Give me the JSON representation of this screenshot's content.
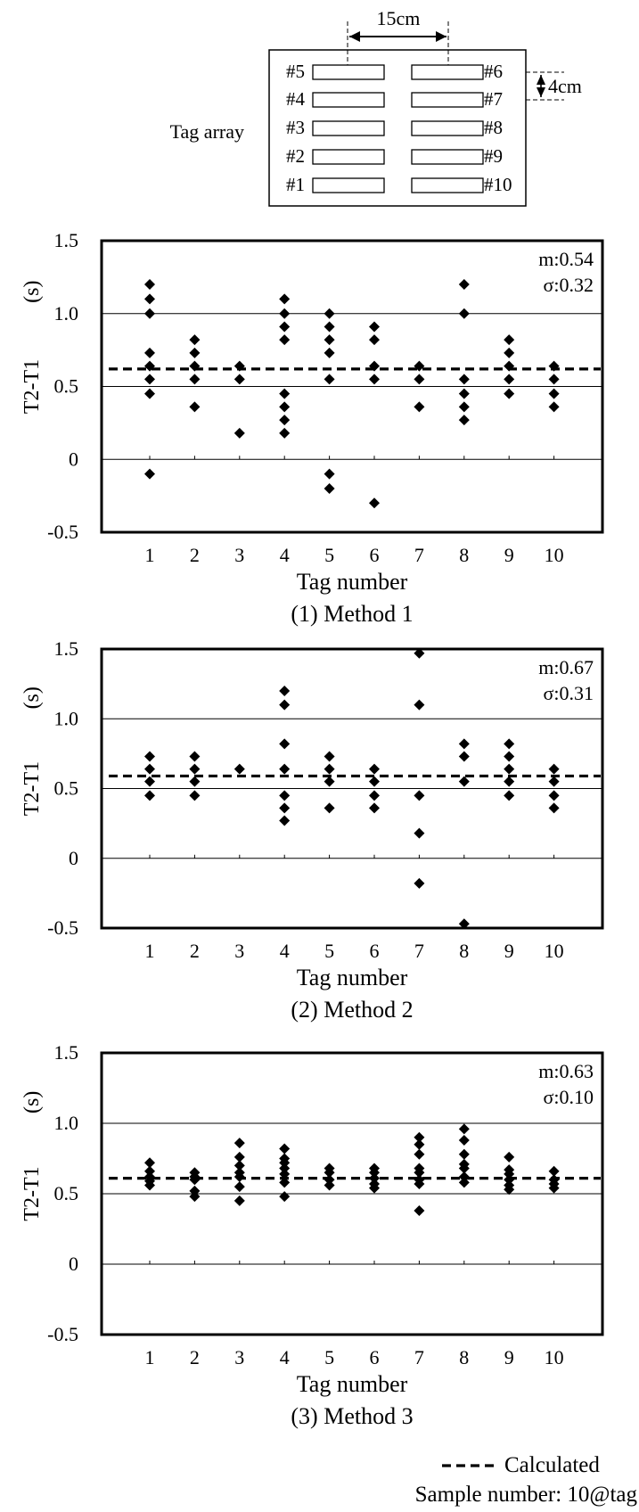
{
  "tag_array": {
    "label": "Tag array",
    "spacing_label": "15cm",
    "pitch_label": "4cm",
    "left_tags": [
      "#5",
      "#4",
      "#3",
      "#2",
      "#1"
    ],
    "right_tags": [
      "#6",
      "#7",
      "#8",
      "#9",
      "#10"
    ]
  },
  "legend": {
    "calculated_label": "Calculated",
    "sample_label": "Sample number: 10@tag"
  },
  "chart_data": [
    {
      "type": "scatter",
      "caption": "(1) Method 1",
      "xlabel": "Tag number",
      "ylabel": "T2-T1",
      "ylabel_unit": "(s)",
      "ylim": [
        -0.5,
        1.5
      ],
      "yticks": [
        "1.5",
        "1.0",
        "0.5",
        "0",
        "-0.5"
      ],
      "categories": [
        "1",
        "2",
        "3",
        "4",
        "5",
        "6",
        "7",
        "8",
        "9",
        "10"
      ],
      "calculated": 0.62,
      "stats": {
        "mean": "m:0.54",
        "sigma": "σ:0.32"
      },
      "points": [
        [
          1,
          1.2
        ],
        [
          1,
          1.1
        ],
        [
          1,
          1.0
        ],
        [
          1,
          0.73
        ],
        [
          1,
          0.64
        ],
        [
          1,
          0.55
        ],
        [
          1,
          0.45
        ],
        [
          1,
          -0.1
        ],
        [
          2,
          0.82
        ],
        [
          2,
          0.73
        ],
        [
          2,
          0.64
        ],
        [
          2,
          0.55
        ],
        [
          2,
          0.36
        ],
        [
          3,
          0.64
        ],
        [
          3,
          0.55
        ],
        [
          3,
          0.18
        ],
        [
          4,
          1.1
        ],
        [
          4,
          1.0
        ],
        [
          4,
          0.91
        ],
        [
          4,
          0.82
        ],
        [
          4,
          0.45
        ],
        [
          4,
          0.36
        ],
        [
          4,
          0.27
        ],
        [
          4,
          0.18
        ],
        [
          5,
          1.0
        ],
        [
          5,
          0.91
        ],
        [
          5,
          0.82
        ],
        [
          5,
          0.73
        ],
        [
          5,
          0.55
        ],
        [
          5,
          -0.1
        ],
        [
          5,
          -0.2
        ],
        [
          6,
          0.91
        ],
        [
          6,
          0.82
        ],
        [
          6,
          0.64
        ],
        [
          6,
          0.55
        ],
        [
          6,
          -0.3
        ],
        [
          7,
          0.64
        ],
        [
          7,
          0.55
        ],
        [
          7,
          0.36
        ],
        [
          8,
          1.2
        ],
        [
          8,
          1.0
        ],
        [
          8,
          0.55
        ],
        [
          8,
          0.45
        ],
        [
          8,
          0.36
        ],
        [
          8,
          0.27
        ],
        [
          9,
          0.82
        ],
        [
          9,
          0.73
        ],
        [
          9,
          0.64
        ],
        [
          9,
          0.55
        ],
        [
          9,
          0.45
        ],
        [
          10,
          0.64
        ],
        [
          10,
          0.55
        ],
        [
          10,
          0.45
        ],
        [
          10,
          0.36
        ]
      ]
    },
    {
      "type": "scatter",
      "caption": "(2) Method 2",
      "xlabel": "Tag number",
      "ylabel": "T2-T1",
      "ylabel_unit": "(s)",
      "ylim": [
        -0.5,
        1.5
      ],
      "yticks": [
        "1.5",
        "1.0",
        "0.5",
        "0",
        "-0.5"
      ],
      "categories": [
        "1",
        "2",
        "3",
        "4",
        "5",
        "6",
        "7",
        "8",
        "9",
        "10"
      ],
      "calculated": 0.59,
      "stats": {
        "mean": "m:0.67",
        "sigma": "σ:0.31"
      },
      "points": [
        [
          1,
          0.73
        ],
        [
          1,
          0.64
        ],
        [
          1,
          0.55
        ],
        [
          1,
          0.45
        ],
        [
          2,
          0.73
        ],
        [
          2,
          0.64
        ],
        [
          2,
          0.55
        ],
        [
          2,
          0.45
        ],
        [
          3,
          0.64
        ],
        [
          4,
          1.2
        ],
        [
          4,
          1.1
        ],
        [
          4,
          0.82
        ],
        [
          4,
          0.64
        ],
        [
          4,
          0.45
        ],
        [
          4,
          0.36
        ],
        [
          4,
          0.27
        ],
        [
          5,
          0.73
        ],
        [
          5,
          0.64
        ],
        [
          5,
          0.55
        ],
        [
          5,
          0.36
        ],
        [
          6,
          0.64
        ],
        [
          6,
          0.55
        ],
        [
          6,
          0.45
        ],
        [
          6,
          0.36
        ],
        [
          7,
          1.47
        ],
        [
          7,
          1.1
        ],
        [
          7,
          0.45
        ],
        [
          7,
          0.18
        ],
        [
          7,
          -0.18
        ],
        [
          8,
          0.82
        ],
        [
          8,
          0.73
        ],
        [
          8,
          0.55
        ],
        [
          8,
          -0.47
        ],
        [
          9,
          0.82
        ],
        [
          9,
          0.73
        ],
        [
          9,
          0.64
        ],
        [
          9,
          0.55
        ],
        [
          9,
          0.45
        ],
        [
          10,
          0.64
        ],
        [
          10,
          0.55
        ],
        [
          10,
          0.45
        ],
        [
          10,
          0.36
        ]
      ]
    },
    {
      "type": "scatter",
      "caption": "(3) Method 3",
      "xlabel": "Tag number",
      "ylabel": "T2-T1",
      "ylabel_unit": "(s)",
      "ylim": [
        -0.5,
        1.5
      ],
      "yticks": [
        "1.5",
        "1.0",
        "0.5",
        "0",
        "-0.5"
      ],
      "categories": [
        "1",
        "2",
        "3",
        "4",
        "5",
        "6",
        "7",
        "8",
        "9",
        "10"
      ],
      "calculated": 0.61,
      "stats": {
        "mean": "m:0.63",
        "sigma": "σ:0.10"
      },
      "points": [
        [
          1,
          0.72
        ],
        [
          1,
          0.66
        ],
        [
          1,
          0.62
        ],
        [
          1,
          0.59
        ],
        [
          1,
          0.56
        ],
        [
          2,
          0.65
        ],
        [
          2,
          0.62
        ],
        [
          2,
          0.6
        ],
        [
          2,
          0.52
        ],
        [
          2,
          0.48
        ],
        [
          3,
          0.86
        ],
        [
          3,
          0.76
        ],
        [
          3,
          0.7
        ],
        [
          3,
          0.65
        ],
        [
          3,
          0.62
        ],
        [
          3,
          0.55
        ],
        [
          3,
          0.45
        ],
        [
          4,
          0.82
        ],
        [
          4,
          0.75
        ],
        [
          4,
          0.72
        ],
        [
          4,
          0.68
        ],
        [
          4,
          0.64
        ],
        [
          4,
          0.58
        ],
        [
          4,
          0.48
        ],
        [
          5,
          0.68
        ],
        [
          5,
          0.65
        ],
        [
          5,
          0.6
        ],
        [
          5,
          0.56
        ],
        [
          6,
          0.68
        ],
        [
          6,
          0.65
        ],
        [
          6,
          0.61
        ],
        [
          6,
          0.57
        ],
        [
          6,
          0.54
        ],
        [
          7,
          0.9
        ],
        [
          7,
          0.85
        ],
        [
          7,
          0.78
        ],
        [
          7,
          0.68
        ],
        [
          7,
          0.65
        ],
        [
          7,
          0.6
        ],
        [
          7,
          0.57
        ],
        [
          7,
          0.38
        ],
        [
          8,
          0.96
        ],
        [
          8,
          0.88
        ],
        [
          8,
          0.78
        ],
        [
          8,
          0.71
        ],
        [
          8,
          0.68
        ],
        [
          8,
          0.62
        ],
        [
          8,
          0.58
        ],
        [
          9,
          0.76
        ],
        [
          9,
          0.67
        ],
        [
          9,
          0.64
        ],
        [
          9,
          0.6
        ],
        [
          9,
          0.56
        ],
        [
          9,
          0.53
        ],
        [
          10,
          0.66
        ],
        [
          10,
          0.6
        ],
        [
          10,
          0.57
        ],
        [
          10,
          0.54
        ]
      ]
    }
  ]
}
